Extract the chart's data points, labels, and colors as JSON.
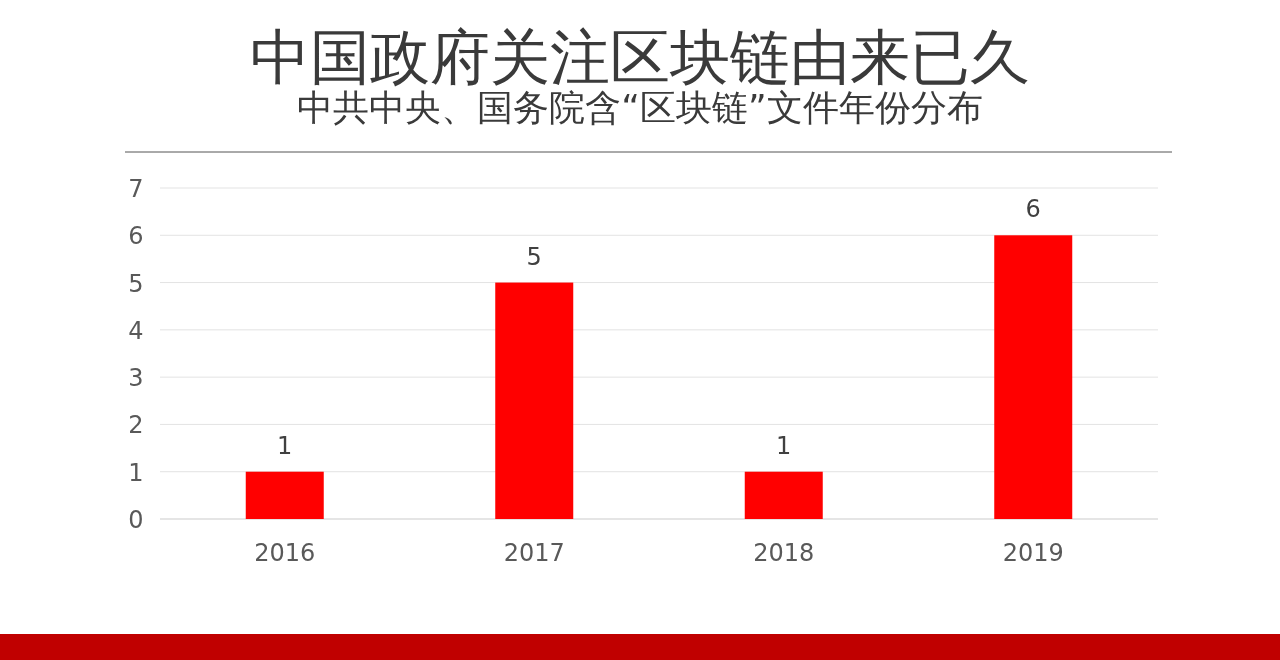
{
  "chart_data": {
    "type": "bar",
    "title": "中国政府关注区块链由来已久",
    "subtitle": "中共中央、国务院含“区块链”文件年份分布",
    "categories": [
      "2016",
      "2017",
      "2018",
      "2019"
    ],
    "values": [
      1,
      5,
      1,
      6
    ],
    "color": "#ff0000",
    "ylim": [
      0,
      7
    ],
    "yticks": [
      0,
      1,
      2,
      3,
      4,
      5,
      6,
      7
    ],
    "grid": "y",
    "data_labels": true
  }
}
